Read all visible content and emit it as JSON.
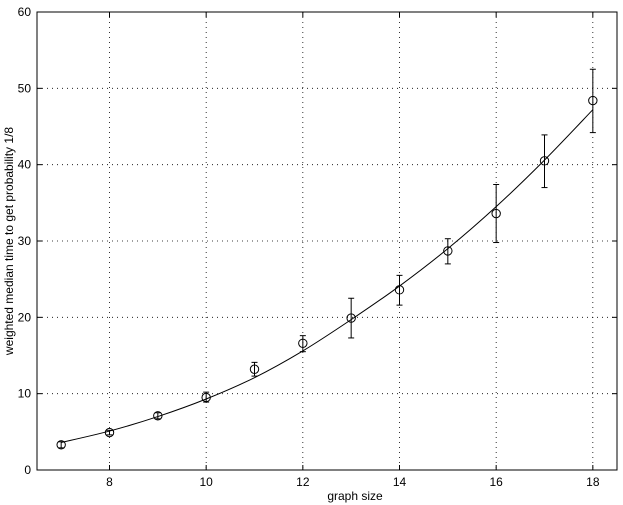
{
  "chart_data": {
    "type": "scatter",
    "title": "",
    "xlabel": "graph size",
    "ylabel": "weighted median time to get probability 1/8",
    "xlim": [
      6.5,
      18.5
    ],
    "ylim": [
      0,
      60
    ],
    "xticks": [
      8,
      10,
      12,
      14,
      16,
      18
    ],
    "yticks": [
      0,
      10,
      20,
      30,
      40,
      50,
      60
    ],
    "grid": true,
    "legend": "none",
    "series": [
      {
        "type": "scatter-errorbar",
        "marker": "open-circle",
        "x": [
          7,
          8,
          9,
          10,
          11,
          12,
          13,
          14,
          15,
          16,
          17,
          18
        ],
        "y": [
          3.3,
          4.9,
          7.1,
          9.5,
          13.2,
          16.6,
          19.9,
          23.6,
          28.7,
          33.6,
          40.5,
          48.4
        ],
        "err_low": [
          2.9,
          4.6,
          6.7,
          8.9,
          12.3,
          15.5,
          17.3,
          21.6,
          27.0,
          29.8,
          37.0,
          44.2
        ],
        "err_high": [
          3.7,
          5.2,
          7.5,
          10.2,
          14.1,
          17.6,
          22.5,
          25.5,
          30.3,
          37.4,
          43.9,
          52.5
        ]
      },
      {
        "type": "line",
        "x": [
          7,
          8,
          9,
          10,
          11,
          12,
          13,
          14,
          15,
          16,
          17,
          18
        ],
        "y": [
          3.6,
          5.1,
          7.0,
          9.3,
          12.1,
          15.6,
          19.7,
          24.1,
          29.0,
          34.5,
          40.6,
          47.2
        ]
      }
    ],
    "colors": {
      "marks": "#000000",
      "grid": "#000000"
    }
  }
}
